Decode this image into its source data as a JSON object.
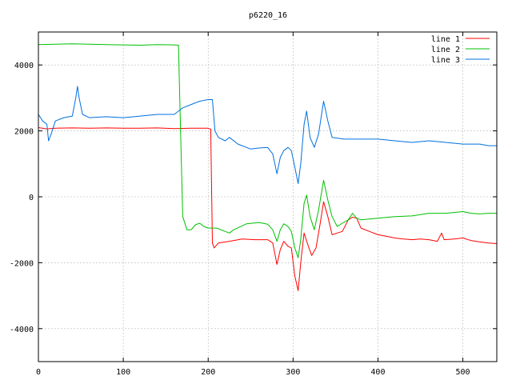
{
  "chart_data": {
    "type": "line",
    "title": "p6220_16",
    "xlabel": "",
    "ylabel": "",
    "xlim": [
      0,
      540
    ],
    "ylim": [
      -5000,
      5000
    ],
    "xticks": [
      0,
      100,
      200,
      300,
      400,
      500
    ],
    "yticks": [
      -4000,
      -2000,
      0,
      2000,
      4000
    ],
    "grid": true,
    "legend_position": "top-right",
    "series": [
      {
        "name": "line 1",
        "color": "#ff0000",
        "points": [
          [
            0,
            2100
          ],
          [
            10,
            2060
          ],
          [
            20,
            2080
          ],
          [
            40,
            2090
          ],
          [
            60,
            2080
          ],
          [
            80,
            2090
          ],
          [
            100,
            2080
          ],
          [
            120,
            2080
          ],
          [
            140,
            2090
          ],
          [
            160,
            2070
          ],
          [
            180,
            2080
          ],
          [
            200,
            2080
          ],
          [
            203,
            2050
          ],
          [
            205,
            -1400
          ],
          [
            207,
            -1550
          ],
          [
            212,
            -1400
          ],
          [
            225,
            -1350
          ],
          [
            240,
            -1280
          ],
          [
            255,
            -1300
          ],
          [
            270,
            -1300
          ],
          [
            276,
            -1400
          ],
          [
            281,
            -2050
          ],
          [
            285,
            -1600
          ],
          [
            289,
            -1350
          ],
          [
            294,
            -1500
          ],
          [
            298,
            -1550
          ],
          [
            302,
            -2400
          ],
          [
            306,
            -2850
          ],
          [
            309,
            -2000
          ],
          [
            313,
            -1100
          ],
          [
            318,
            -1500
          ],
          [
            322,
            -1780
          ],
          [
            327,
            -1550
          ],
          [
            332,
            -800
          ],
          [
            336,
            -150
          ],
          [
            341,
            -600
          ],
          [
            346,
            -1150
          ],
          [
            352,
            -1100
          ],
          [
            358,
            -1050
          ],
          [
            365,
            -700
          ],
          [
            370,
            -620
          ],
          [
            375,
            -650
          ],
          [
            380,
            -950
          ],
          [
            390,
            -1050
          ],
          [
            400,
            -1150
          ],
          [
            410,
            -1200
          ],
          [
            420,
            -1250
          ],
          [
            430,
            -1280
          ],
          [
            440,
            -1300
          ],
          [
            450,
            -1280
          ],
          [
            460,
            -1300
          ],
          [
            470,
            -1350
          ],
          [
            475,
            -1100
          ],
          [
            478,
            -1300
          ],
          [
            490,
            -1280
          ],
          [
            500,
            -1250
          ],
          [
            510,
            -1330
          ],
          [
            520,
            -1370
          ],
          [
            530,
            -1400
          ],
          [
            540,
            -1420
          ]
        ]
      },
      {
        "name": "line 2",
        "color": "#00c000",
        "points": [
          [
            0,
            4620
          ],
          [
            20,
            4630
          ],
          [
            40,
            4640
          ],
          [
            60,
            4630
          ],
          [
            80,
            4620
          ],
          [
            100,
            4610
          ],
          [
            120,
            4600
          ],
          [
            140,
            4620
          ],
          [
            160,
            4610
          ],
          [
            165,
            4600
          ],
          [
            167,
            2500
          ],
          [
            170,
            -600
          ],
          [
            175,
            -1000
          ],
          [
            180,
            -1000
          ],
          [
            185,
            -850
          ],
          [
            190,
            -800
          ],
          [
            195,
            -900
          ],
          [
            200,
            -950
          ],
          [
            210,
            -950
          ],
          [
            220,
            -1050
          ],
          [
            225,
            -1100
          ],
          [
            230,
            -1000
          ],
          [
            245,
            -820
          ],
          [
            260,
            -780
          ],
          [
            270,
            -830
          ],
          [
            276,
            -1000
          ],
          [
            281,
            -1350
          ],
          [
            285,
            -1000
          ],
          [
            289,
            -820
          ],
          [
            294,
            -900
          ],
          [
            298,
            -1050
          ],
          [
            302,
            -1550
          ],
          [
            306,
            -1850
          ],
          [
            309,
            -1300
          ],
          [
            313,
            -200
          ],
          [
            316,
            50
          ],
          [
            320,
            -600
          ],
          [
            325,
            -1000
          ],
          [
            330,
            -400
          ],
          [
            336,
            500
          ],
          [
            341,
            -100
          ],
          [
            346,
            -600
          ],
          [
            352,
            -900
          ],
          [
            358,
            -800
          ],
          [
            365,
            -700
          ],
          [
            370,
            -500
          ],
          [
            375,
            -650
          ],
          [
            380,
            -700
          ],
          [
            400,
            -650
          ],
          [
            420,
            -600
          ],
          [
            440,
            -580
          ],
          [
            460,
            -500
          ],
          [
            480,
            -500
          ],
          [
            500,
            -450
          ],
          [
            510,
            -500
          ],
          [
            520,
            -520
          ],
          [
            530,
            -500
          ],
          [
            540,
            -500
          ]
        ]
      },
      {
        "name": "line 3",
        "color": "#0070e0",
        "points": [
          [
            0,
            2500
          ],
          [
            5,
            2300
          ],
          [
            10,
            2200
          ],
          [
            12,
            1700
          ],
          [
            15,
            1900
          ],
          [
            20,
            2300
          ],
          [
            30,
            2400
          ],
          [
            40,
            2450
          ],
          [
            44,
            3000
          ],
          [
            46,
            3350
          ],
          [
            48,
            3000
          ],
          [
            52,
            2500
          ],
          [
            60,
            2400
          ],
          [
            80,
            2430
          ],
          [
            100,
            2400
          ],
          [
            120,
            2450
          ],
          [
            140,
            2500
          ],
          [
            160,
            2500
          ],
          [
            165,
            2600
          ],
          [
            170,
            2700
          ],
          [
            180,
            2800
          ],
          [
            190,
            2900
          ],
          [
            200,
            2950
          ],
          [
            205,
            2950
          ],
          [
            208,
            2000
          ],
          [
            212,
            1800
          ],
          [
            220,
            1700
          ],
          [
            225,
            1800
          ],
          [
            235,
            1600
          ],
          [
            250,
            1450
          ],
          [
            260,
            1480
          ],
          [
            270,
            1500
          ],
          [
            276,
            1300
          ],
          [
            281,
            700
          ],
          [
            285,
            1200
          ],
          [
            289,
            1400
          ],
          [
            294,
            1500
          ],
          [
            298,
            1400
          ],
          [
            302,
            900
          ],
          [
            306,
            400
          ],
          [
            309,
            1000
          ],
          [
            313,
            2200
          ],
          [
            316,
            2600
          ],
          [
            320,
            1800
          ],
          [
            325,
            1500
          ],
          [
            330,
            1900
          ],
          [
            336,
            2900
          ],
          [
            341,
            2300
          ],
          [
            346,
            1800
          ],
          [
            360,
            1750
          ],
          [
            380,
            1750
          ],
          [
            400,
            1750
          ],
          [
            420,
            1700
          ],
          [
            440,
            1650
          ],
          [
            460,
            1700
          ],
          [
            480,
            1650
          ],
          [
            500,
            1600
          ],
          [
            520,
            1600
          ],
          [
            530,
            1550
          ],
          [
            540,
            1550
          ]
        ]
      }
    ]
  }
}
